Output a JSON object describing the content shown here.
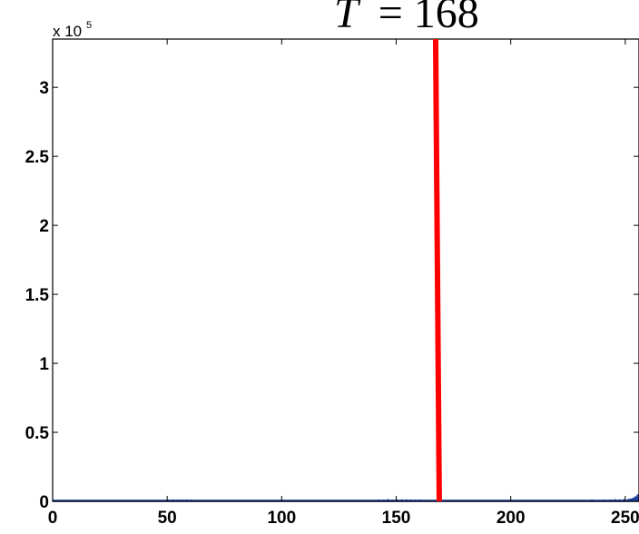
{
  "chart_data": {
    "type": "bar",
    "title": {
      "variable": "T",
      "equals": "=",
      "value": "168"
    },
    "xlabel": "",
    "ylabel": "",
    "xlim": [
      0,
      256
    ],
    "ylim": [
      0,
      335000
    ],
    "y_exponent_label": "x 10",
    "y_exponent_power": "5",
    "xticks": [
      0,
      50,
      100,
      150,
      200,
      250
    ],
    "xtick_labels": [
      "0",
      "50",
      "100",
      "150",
      "200",
      "250"
    ],
    "yticks": [
      0,
      50000,
      100000,
      150000,
      200000,
      250000,
      300000
    ],
    "ytick_labels": [
      "0",
      "0.5",
      "1",
      "1.5",
      "2",
      "2.5",
      "3"
    ],
    "threshold": 168,
    "threshold_color": "#ff0000",
    "bar_color": "#1f3f9f",
    "grid": false,
    "x": [
      22,
      27,
      31,
      50,
      52,
      54,
      56,
      58,
      60,
      75,
      90,
      93,
      96,
      100,
      105,
      110,
      118,
      125,
      138,
      140,
      142,
      144,
      146,
      148,
      150,
      152,
      154,
      156,
      158,
      160,
      162,
      165,
      175,
      180,
      190,
      198,
      205,
      215,
      222,
      230,
      235,
      240,
      243,
      245,
      247,
      249,
      251,
      252,
      253,
      254,
      255
    ],
    "values": [
      500,
      800,
      500,
      1200,
      1300,
      1200,
      1200,
      1300,
      1200,
      500,
      600,
      800,
      700,
      1000,
      700,
      800,
      600,
      500,
      600,
      900,
      1200,
      1200,
      1500,
      1200,
      1300,
      1400,
      1400,
      1200,
      1200,
      1200,
      1000,
      800,
      600,
      500,
      500,
      500,
      700,
      600,
      800,
      900,
      1300,
      1200,
      1300,
      1500,
      1400,
      1600,
      1800,
      2000,
      2700,
      3600,
      5000
    ]
  }
}
